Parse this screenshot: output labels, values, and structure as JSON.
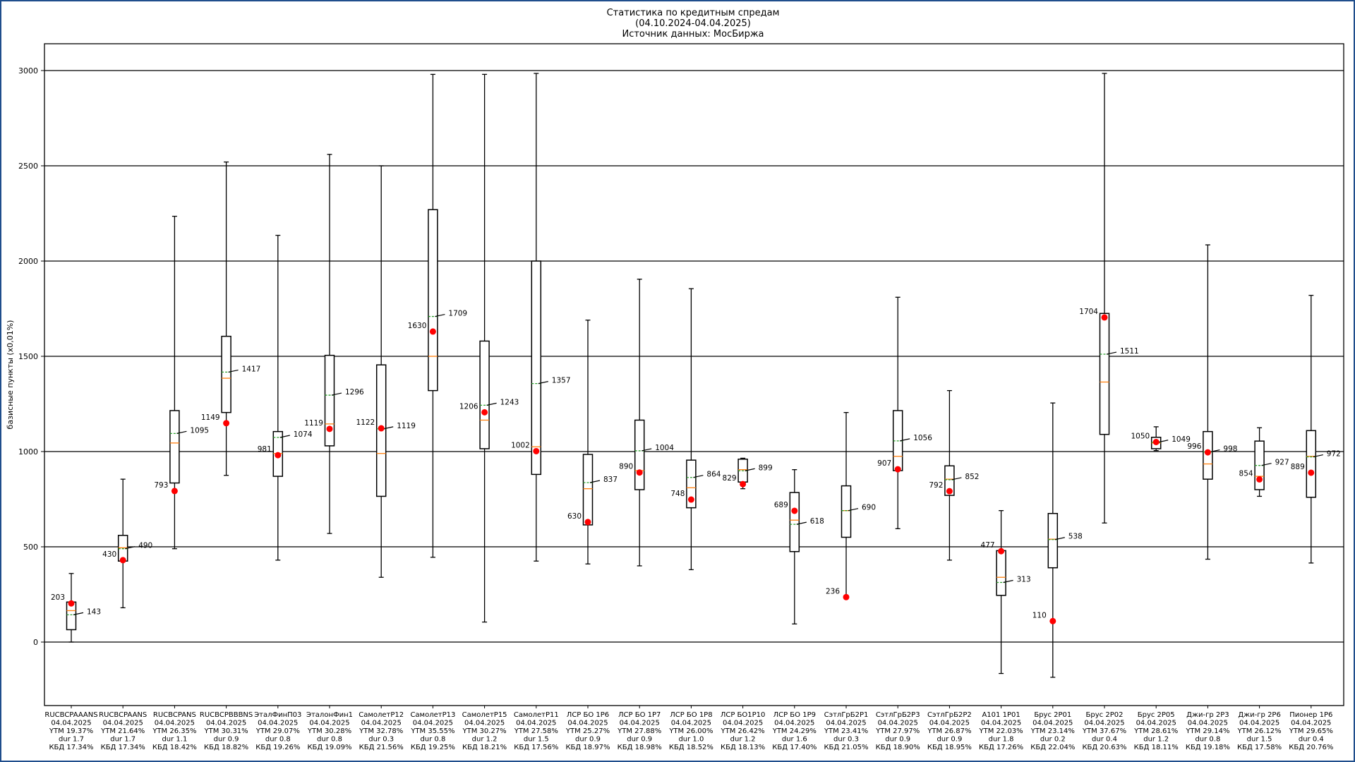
{
  "chart_data": {
    "type": "box",
    "title_lines": [
      "Статистика по кредитным спредам",
      "(04.10.2024-04.04.2025)",
      "Источник данных: МосБиржа"
    ],
    "ylabel": "базисные пункты (x0,01%)",
    "xlabel": "",
    "ylim": [
      -370,
      3150
    ],
    "yticks": [
      0,
      500,
      1000,
      1500,
      2000,
      2500,
      3000
    ],
    "grid": "horizontal",
    "colors": {
      "box": "#000000",
      "median": "#ff7f0e",
      "mean": "#2ca02c",
      "current": "#ff0000"
    },
    "items": [
      {
        "category": [
          "RUCBCPAAANS",
          "04.04.2025",
          "YTM 19.37%",
          "dur 1.7",
          "КБД 17.34%"
        ],
        "whisker_low": 0,
        "q1": 65,
        "median": 165,
        "q3": 210,
        "whisker_high": 360,
        "mean": 143,
        "mean_label": "143",
        "current": 203,
        "current_label": "203"
      },
      {
        "category": [
          "RUCBCPAANS",
          "04.04.2025",
          "YTM 21.64%",
          "dur 1.7",
          "КБД 17.34%"
        ],
        "whisker_low": 180,
        "q1": 425,
        "median": 495,
        "q3": 560,
        "whisker_high": 855,
        "mean": 490,
        "mean_label": "490",
        "current": 430,
        "current_label": "430"
      },
      {
        "category": [
          "RUCBCPANS",
          "04.04.2025",
          "YTM 26.35%",
          "dur 1.1",
          "КБД 18.42%"
        ],
        "whisker_low": 490,
        "q1": 835,
        "median": 1045,
        "q3": 1215,
        "whisker_high": 2235,
        "mean": 1095,
        "mean_label": "1095",
        "current": 793,
        "current_label": "793"
      },
      {
        "category": [
          "RUCBCPBBBNS",
          "04.04.2025",
          "YTM 30.31%",
          "dur 0.9",
          "КБД 18.82%"
        ],
        "whisker_low": 875,
        "q1": 1205,
        "median": 1385,
        "q3": 1605,
        "whisker_high": 2520,
        "mean": 1417,
        "mean_label": "1417",
        "current": 1149,
        "current_label": "1149"
      },
      {
        "category": [
          "ЭталФинП03",
          "04.04.2025",
          "YTM 29.07%",
          "dur 0.8",
          "КБД 19.26%"
        ],
        "whisker_low": 430,
        "q1": 870,
        "median": 990,
        "q3": 1105,
        "whisker_high": 2135,
        "mean": 1074,
        "mean_label": "1074",
        "current": 981,
        "current_label": "981"
      },
      {
        "category": [
          "ЭталонФин1",
          "04.04.2025",
          "YTM 30.28%",
          "dur 0.8",
          "КБД 19.09%"
        ],
        "whisker_low": 570,
        "q1": 1030,
        "median": 1145,
        "q3": 1505,
        "whisker_high": 2560,
        "mean": 1296,
        "mean_label": "1296",
        "current": 1119,
        "current_label": "1119"
      },
      {
        "category": [
          "СамолетР12",
          "04.04.2025",
          "YTM 32.78%",
          "dur 0.3",
          "КБД 21.56%"
        ],
        "whisker_low": 340,
        "q1": 765,
        "median": 990,
        "q3": 1455,
        "whisker_high": 2500,
        "mean": 1119,
        "mean_label": "1119",
        "current": 1122,
        "current_label": "1122"
      },
      {
        "category": [
          "СамолетР13",
          "04.04.2025",
          "YTM 35.55%",
          "dur 0.8",
          "КБД 19.25%"
        ],
        "whisker_low": 445,
        "q1": 1320,
        "median": 1500,
        "q3": 2270,
        "whisker_high": 2980,
        "mean": 1709,
        "mean_label": "1709",
        "current": 1630,
        "current_label": "1630"
      },
      {
        "category": [
          "СамолетР15",
          "04.04.2025",
          "YTM 30.27%",
          "dur 1.2",
          "КБД 18.21%"
        ],
        "whisker_low": 105,
        "q1": 1015,
        "median": 1165,
        "q3": 1580,
        "whisker_high": 2980,
        "mean": 1243,
        "mean_label": "1243",
        "current": 1206,
        "current_label": "1206"
      },
      {
        "category": [
          "СамолетР11",
          "04.04.2025",
          "YTM 27.58%",
          "dur 1.5",
          "КБД 17.56%"
        ],
        "whisker_low": 425,
        "q1": 880,
        "median": 1025,
        "q3": 2000,
        "whisker_high": 2985,
        "mean": 1357,
        "mean_label": "1357",
        "current": 1002,
        "current_label": "1002"
      },
      {
        "category": [
          "ЛСР БО 1Р6",
          "04.04.2025",
          "YTM 25.27%",
          "dur 0.9",
          "КБД 18.97%"
        ],
        "whisker_low": 410,
        "q1": 615,
        "median": 805,
        "q3": 985,
        "whisker_high": 1690,
        "mean": 837,
        "mean_label": "837",
        "current": 630,
        "current_label": "630"
      },
      {
        "category": [
          "ЛСР БО 1Р7",
          "04.04.2025",
          "YTM 27.88%",
          "dur 0.9",
          "КБД 18.98%"
        ],
        "whisker_low": 400,
        "q1": 800,
        "median": 900,
        "q3": 1165,
        "whisker_high": 1905,
        "mean": 1004,
        "mean_label": "1004",
        "current": 890,
        "current_label": "890"
      },
      {
        "category": [
          "ЛСР БО 1Р8",
          "04.04.2025",
          "YTM 26.00%",
          "dur 1.0",
          "КБД 18.52%"
        ],
        "whisker_low": 380,
        "q1": 705,
        "median": 810,
        "q3": 955,
        "whisker_high": 1855,
        "mean": 864,
        "mean_label": "864",
        "current": 748,
        "current_label": "748"
      },
      {
        "category": [
          "ЛСР БО1Р10",
          "04.04.2025",
          "YTM 26.42%",
          "dur 1.2",
          "КБД 18.13%"
        ],
        "whisker_low": 805,
        "q1": 840,
        "median": 905,
        "q3": 960,
        "whisker_high": 965,
        "mean": 899,
        "mean_label": "899",
        "current": 829,
        "current_label": "829"
      },
      {
        "category": [
          "ЛСР БО 1Р9",
          "04.04.2025",
          "YTM 24.29%",
          "dur 1.6",
          "КБД 17.40%"
        ],
        "whisker_low": 95,
        "q1": 475,
        "median": 640,
        "q3": 785,
        "whisker_high": 905,
        "mean": 618,
        "mean_label": "618",
        "current": 689,
        "current_label": "689"
      },
      {
        "category": [
          "СэтлГрБ2Р1",
          "04.04.2025",
          "YTM 23.41%",
          "dur 0.3",
          "КБД 21.05%"
        ],
        "whisker_low": 236,
        "q1": 550,
        "median": 690,
        "q3": 820,
        "whisker_high": 1205,
        "mean": 690,
        "mean_label": "690",
        "current": 236,
        "current_label": "236"
      },
      {
        "category": [
          "СэтлГрБ2Р3",
          "04.04.2025",
          "YTM 27.97%",
          "dur 0.9",
          "КБД 18.90%"
        ],
        "whisker_low": 595,
        "q1": 900,
        "median": 975,
        "q3": 1215,
        "whisker_high": 1810,
        "mean": 1056,
        "mean_label": "1056",
        "current": 907,
        "current_label": "907"
      },
      {
        "category": [
          "СэтлГрБ2Р2",
          "04.04.2025",
          "YTM 26.87%",
          "dur 0.9",
          "КБД 18.95%"
        ],
        "whisker_low": 430,
        "q1": 770,
        "median": 855,
        "q3": 925,
        "whisker_high": 1320,
        "mean": 852,
        "mean_label": "852",
        "current": 792,
        "current_label": "792"
      },
      {
        "category": [
          "А101 1Р01",
          "04.04.2025",
          "YTM 22.03%",
          "dur 1.8",
          "КБД 17.26%"
        ],
        "whisker_low": -165,
        "q1": 245,
        "median": 340,
        "q3": 480,
        "whisker_high": 690,
        "mean": 313,
        "mean_label": "313",
        "current": 477,
        "current_label": "477"
      },
      {
        "category": [
          "Брус 2Р01",
          "04.04.2025",
          "YTM 23.14%",
          "dur 0.2",
          "КБД 22.04%"
        ],
        "whisker_low": -185,
        "q1": 390,
        "median": 540,
        "q3": 675,
        "whisker_high": 1255,
        "mean": 538,
        "mean_label": "538",
        "current": 110,
        "current_label": "110"
      },
      {
        "category": [
          "Брус 2Р02",
          "04.04.2025",
          "YTM 37.67%",
          "dur 0.4",
          "КБД 20.63%"
        ],
        "whisker_low": 625,
        "q1": 1090,
        "median": 1365,
        "q3": 1725,
        "whisker_high": 2985,
        "mean": 1511,
        "mean_label": "1511",
        "current": 1704,
        "current_label": "1704"
      },
      {
        "category": [
          "Брус 2Р05",
          "04.04.2025",
          "YTM 28.61%",
          "dur 1.2",
          "КБД 18.11%"
        ],
        "whisker_low": 1005,
        "q1": 1015,
        "median": 1045,
        "q3": 1075,
        "whisker_high": 1130,
        "mean": 1049,
        "mean_label": "1049",
        "current": 1050,
        "current_label": "1050"
      },
      {
        "category": [
          "Джи-гр 2Р3",
          "04.04.2025",
          "YTM 29.14%",
          "dur 0.8",
          "КБД 19.18%"
        ],
        "whisker_low": 435,
        "q1": 855,
        "median": 935,
        "q3": 1105,
        "whisker_high": 2085,
        "mean": 998,
        "mean_label": "998",
        "current": 996,
        "current_label": "996"
      },
      {
        "category": [
          "Джи-гр 2Р6",
          "04.04.2025",
          "YTM 26.12%",
          "dur 1.5",
          "КБД 17.58%"
        ],
        "whisker_low": 765,
        "q1": 800,
        "median": 870,
        "q3": 1055,
        "whisker_high": 1125,
        "mean": 927,
        "mean_label": "927",
        "current": 854,
        "current_label": "854"
      },
      {
        "category": [
          "Пионер 1Р6",
          "04.04.2025",
          "YTM 29.65%",
          "dur 0.4",
          "КБД 20.76%"
        ],
        "whisker_low": 415,
        "q1": 760,
        "median": 975,
        "q3": 1110,
        "whisker_high": 1820,
        "mean": 972,
        "mean_label": "972",
        "current": 889,
        "current_label": "889"
      }
    ]
  }
}
